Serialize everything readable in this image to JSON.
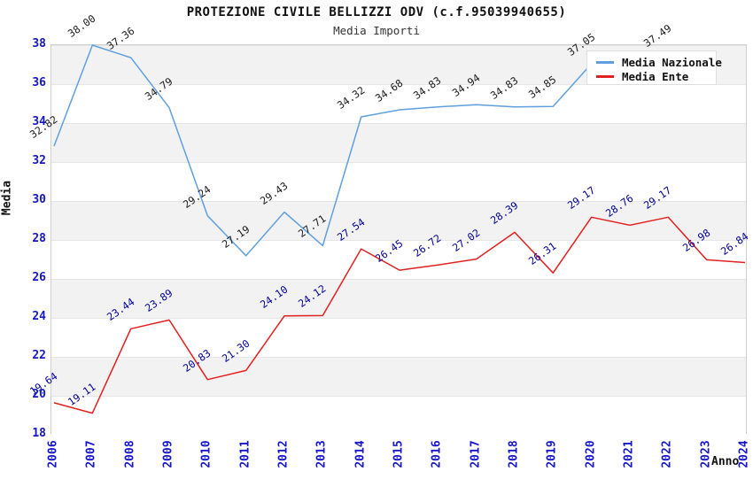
{
  "header": {
    "title": "PROTEZIONE CIVILE BELLIZZI ODV (c.f.95039940655)",
    "subtitle": "Media Importi"
  },
  "legend": {
    "items": [
      {
        "label": "Media Nazionale",
        "color": "#5f9fdf"
      },
      {
        "label": "Media Ente",
        "color": "#e32020"
      }
    ]
  },
  "chart_data": {
    "type": "line",
    "title": "PROTEZIONE CIVILE BELLIZZI ODV (c.f.95039940655)",
    "subtitle": "Media Importi",
    "xlabel": "Anno",
    "ylabel": "Media",
    "ylim": [
      18,
      38
    ],
    "ytick_step": 2,
    "grid": "alternating horizontal bands",
    "legend_position": "top-right inside plot",
    "categories": [
      "2006",
      "2007",
      "2008",
      "2009",
      "2010",
      "2011",
      "2012",
      "2013",
      "2014",
      "2015",
      "2016",
      "2017",
      "2018",
      "2019",
      "2020",
      "2021",
      "2022",
      "2023",
      "2024"
    ],
    "series": [
      {
        "name": "Media Nazionale",
        "color": "#5f9fdf",
        "label_color": "#1a1a1a",
        "values": [
          32.82,
          38.0,
          37.36,
          34.79,
          29.24,
          27.19,
          29.43,
          27.71,
          34.32,
          34.68,
          34.83,
          34.94,
          34.83,
          34.85,
          37.05,
          null,
          37.49,
          null,
          null
        ],
        "note": "2021 value hidden behind legend; series not drawn after 2022"
      },
      {
        "name": "Media Ente",
        "color": "#e32020",
        "label_color": "#000099",
        "values": [
          19.64,
          19.11,
          23.44,
          23.89,
          20.83,
          21.3,
          24.1,
          24.12,
          27.54,
          26.45,
          26.72,
          27.02,
          28.39,
          26.31,
          29.17,
          28.76,
          29.17,
          26.98,
          26.84
        ]
      }
    ],
    "colors": {
      "band_gray": "#f2f2f2",
      "band_white": "#ffffff",
      "tick_label": "#1515cc",
      "plot_border": "#cfcfcf"
    }
  }
}
